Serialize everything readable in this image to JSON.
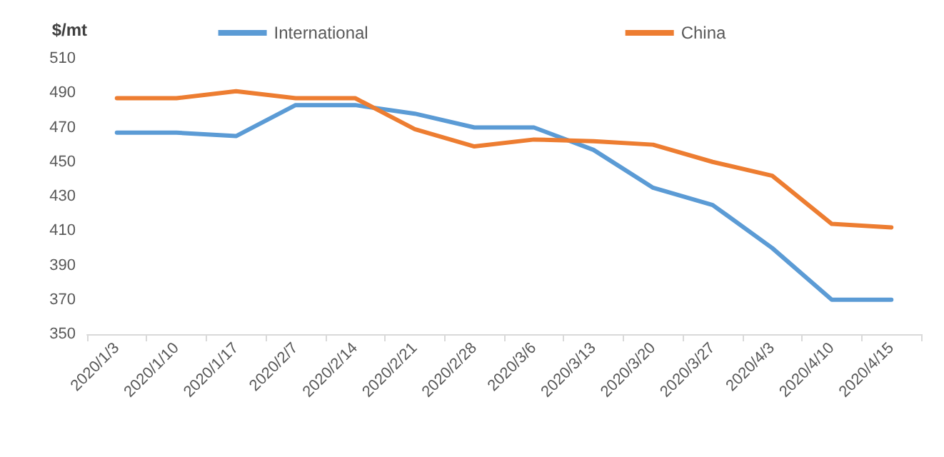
{
  "chart_data": {
    "type": "line",
    "ylabel": "$/mt",
    "categories": [
      "2020/1/3",
      "2020/1/10",
      "2020/1/17",
      "2020/2/7",
      "2020/2/14",
      "2020/2/21",
      "2020/2/28",
      "2020/3/6",
      "2020/3/13",
      "2020/3/20",
      "2020/3/27",
      "2020/4/3",
      "2020/4/10",
      "2020/4/15"
    ],
    "series": [
      {
        "name": "International",
        "color": "#5b9bd5",
        "values": [
          467,
          467,
          465,
          483,
          483,
          478,
          470,
          470,
          457,
          435,
          425,
          400,
          370,
          370
        ]
      },
      {
        "name": "China",
        "color": "#ed7d31",
        "values": [
          487,
          487,
          491,
          487,
          487,
          469,
          459,
          463,
          462,
          460,
          450,
          442,
          414,
          412
        ]
      }
    ],
    "ylim": [
      350,
      510
    ],
    "yticks": [
      350,
      370,
      390,
      410,
      430,
      450,
      470,
      490,
      510
    ],
    "grid": false,
    "legend": "top",
    "marker": "none",
    "line_style": "solid"
  }
}
